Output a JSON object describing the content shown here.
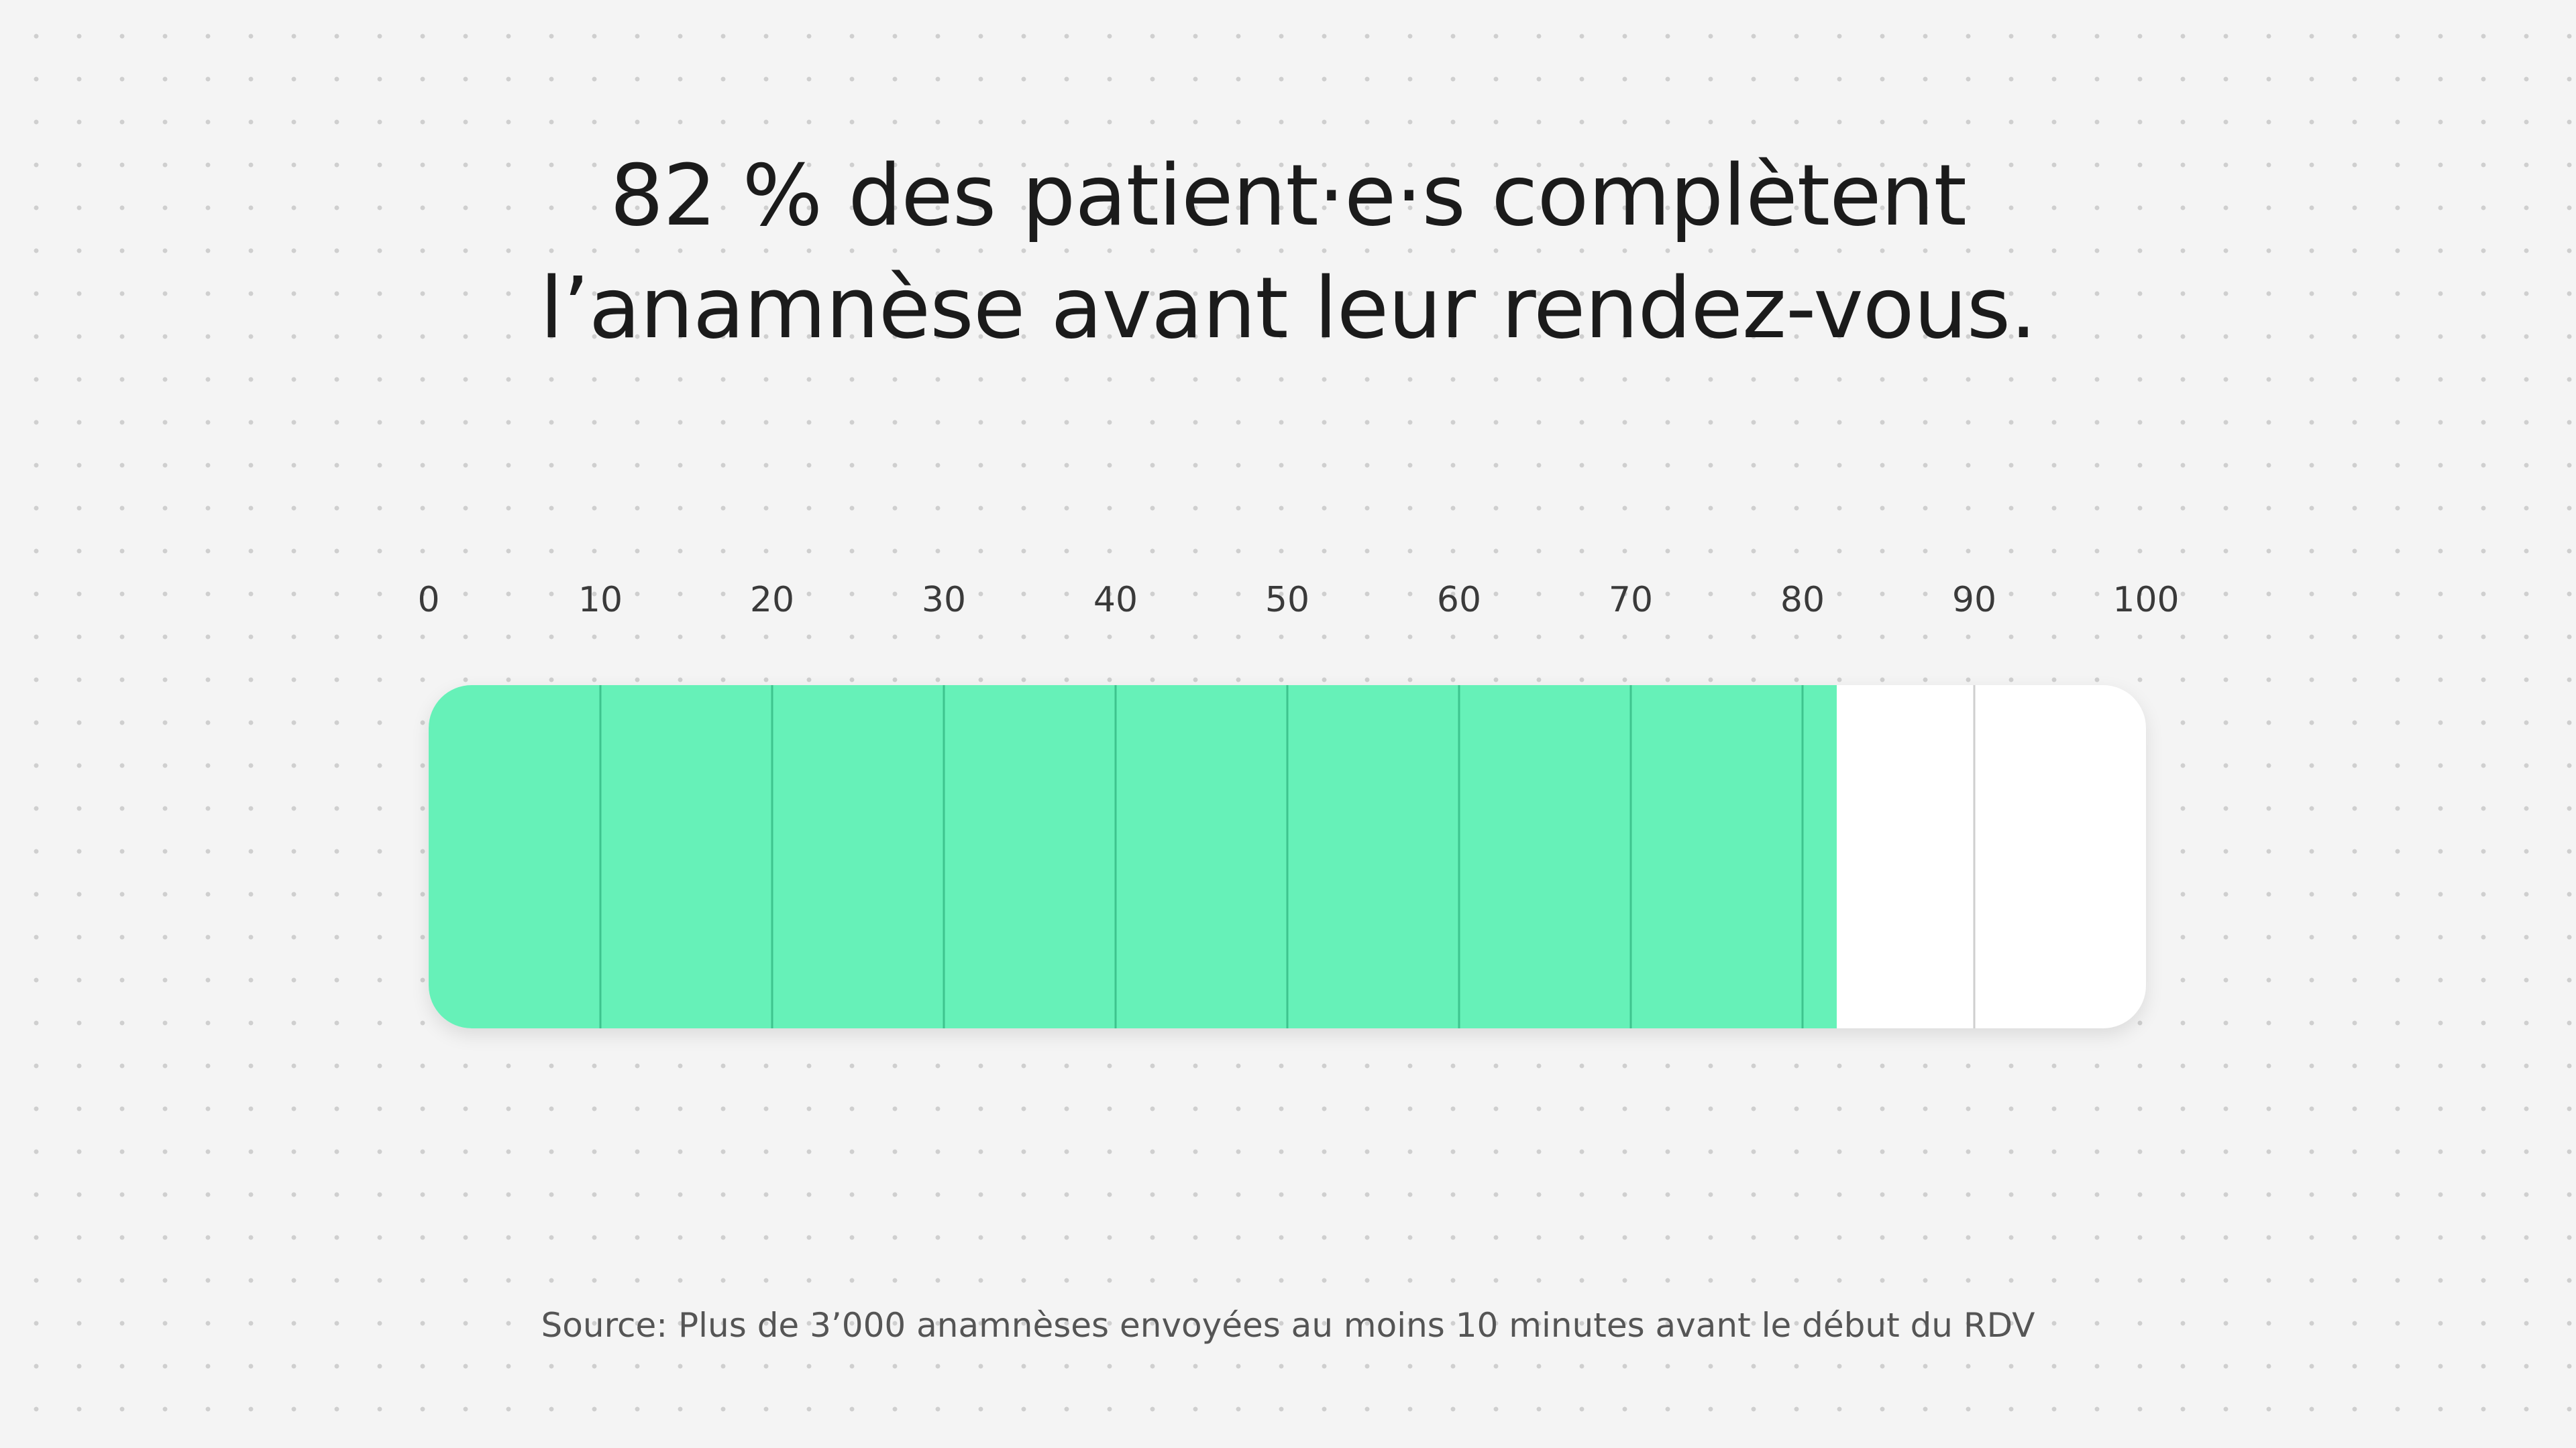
{
  "title": {
    "line1": "82 % des patient·e·s complètent",
    "line2": "l’anamnèse avant leur rendez-vous."
  },
  "chart_data": {
    "type": "bar",
    "orientation": "horizontal",
    "title": "82 % des patient·e·s complètent l’anamnèse avant leur rendez-vous.",
    "value": 82,
    "xlim": [
      0,
      100
    ],
    "ticks": [
      "0",
      "10",
      "20",
      "30",
      "40",
      "50",
      "60",
      "70",
      "80",
      "90",
      "100"
    ],
    "tick_values": [
      0,
      10,
      20,
      30,
      40,
      50,
      60,
      70,
      80,
      90,
      100
    ],
    "grid": true,
    "colors": {
      "fill": "#66f1b8",
      "track": "#ffffff",
      "grid_in_fill": "#3ec48e",
      "grid_out_fill": "#cfcfcf"
    }
  },
  "source": "Source: Plus de 3’000 anamnèses envoyées au moins 10 minutes avant le début du RDV"
}
